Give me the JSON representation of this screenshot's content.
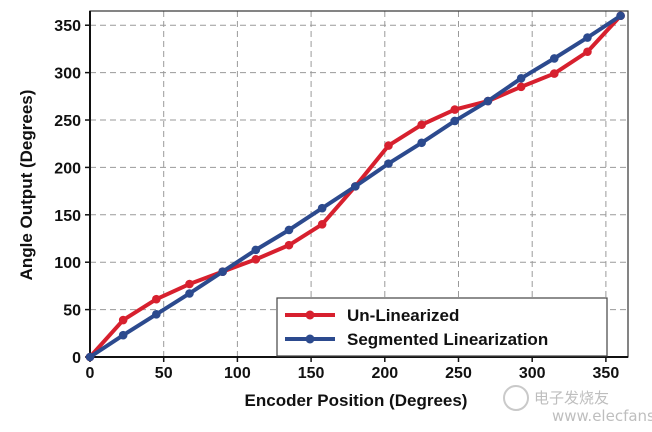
{
  "chart_data": {
    "type": "line",
    "title": "",
    "xlabel": "Encoder Position (Degrees)",
    "ylabel": "Angle Output (Degrees)",
    "xlim": [
      0,
      365
    ],
    "ylim": [
      0,
      365
    ],
    "x_ticks": [
      0,
      50,
      100,
      150,
      200,
      250,
      300,
      350
    ],
    "y_ticks": [
      0,
      50,
      100,
      150,
      200,
      250,
      300,
      350
    ],
    "grid": true,
    "legend_position": "bottom-right",
    "series": [
      {
        "name": "Un-Linearized",
        "color": "#d7202e",
        "x": [
          0,
          22.5,
          45,
          67.5,
          90,
          112.5,
          135,
          157.5,
          180,
          202.5,
          225,
          247.5,
          270,
          292.5,
          315,
          337.5,
          360
        ],
        "y": [
          0,
          39,
          61,
          77,
          90,
          103,
          118,
          140,
          180,
          223,
          245,
          261,
          270,
          285,
          299,
          322,
          360
        ]
      },
      {
        "name": "Segmented Linearization",
        "color": "#2c4a8e",
        "x": [
          0,
          22.5,
          45,
          67.5,
          90,
          112.5,
          135,
          157.5,
          180,
          202.5,
          225,
          247.5,
          270,
          292.5,
          315,
          337.5,
          360
        ],
        "y": [
          0,
          23,
          45,
          67,
          90,
          113,
          134,
          157,
          180,
          204,
          226,
          249,
          270,
          294,
          315,
          337,
          360
        ]
      }
    ]
  },
  "watermark": {
    "text": "电子发烧友",
    "sub_text": "www.elecfans.com"
  }
}
